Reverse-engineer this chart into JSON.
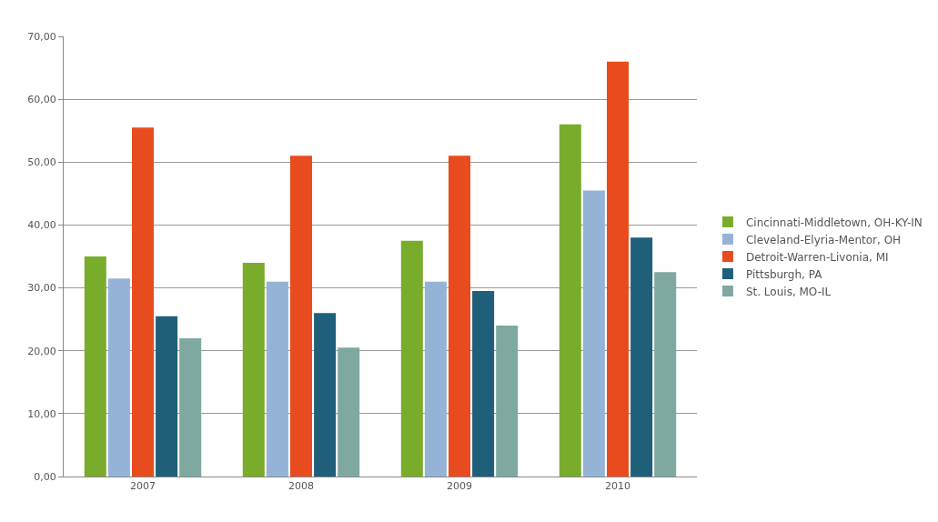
{
  "chart_data": {
    "type": "bar",
    "categories": [
      "2007",
      "2008",
      "2009",
      "2010"
    ],
    "series": [
      {
        "name": "Cincinnati-Middletown, OH-KY-IN",
        "color": "#7aac2c",
        "values": [
          35,
          34,
          37.5,
          56
        ]
      },
      {
        "name": "Cleveland-Elyria-Mentor, OH",
        "color": "#95b3d7",
        "values": [
          31.5,
          31,
          31,
          45.5
        ]
      },
      {
        "name": "Detroit-Warren-Livonia, MI",
        "color": "#e84c1e",
        "values": [
          55.5,
          51,
          51,
          66
        ]
      },
      {
        "name": "Pittsburgh, PA",
        "color": "#1f5f7a",
        "values": [
          25.5,
          26,
          29.5,
          38
        ]
      },
      {
        "name": "St. Louis, MO-IL",
        "color": "#7fa8a0",
        "values": [
          22,
          20.5,
          24,
          32.5
        ]
      }
    ],
    "ylim": [
      0,
      70
    ],
    "yticks": [
      {
        "value": 0,
        "label": "0,00"
      },
      {
        "value": 10,
        "label": "10,00"
      },
      {
        "value": 20,
        "label": "20,00"
      },
      {
        "value": 30,
        "label": "30,00"
      },
      {
        "value": 40,
        "label": "40,00"
      },
      {
        "value": 50,
        "label": "50,00"
      },
      {
        "value": 60,
        "label": "60,00"
      },
      {
        "value": 70,
        "label": "70,00"
      }
    ],
    "grid": "y",
    "legend": "right"
  }
}
